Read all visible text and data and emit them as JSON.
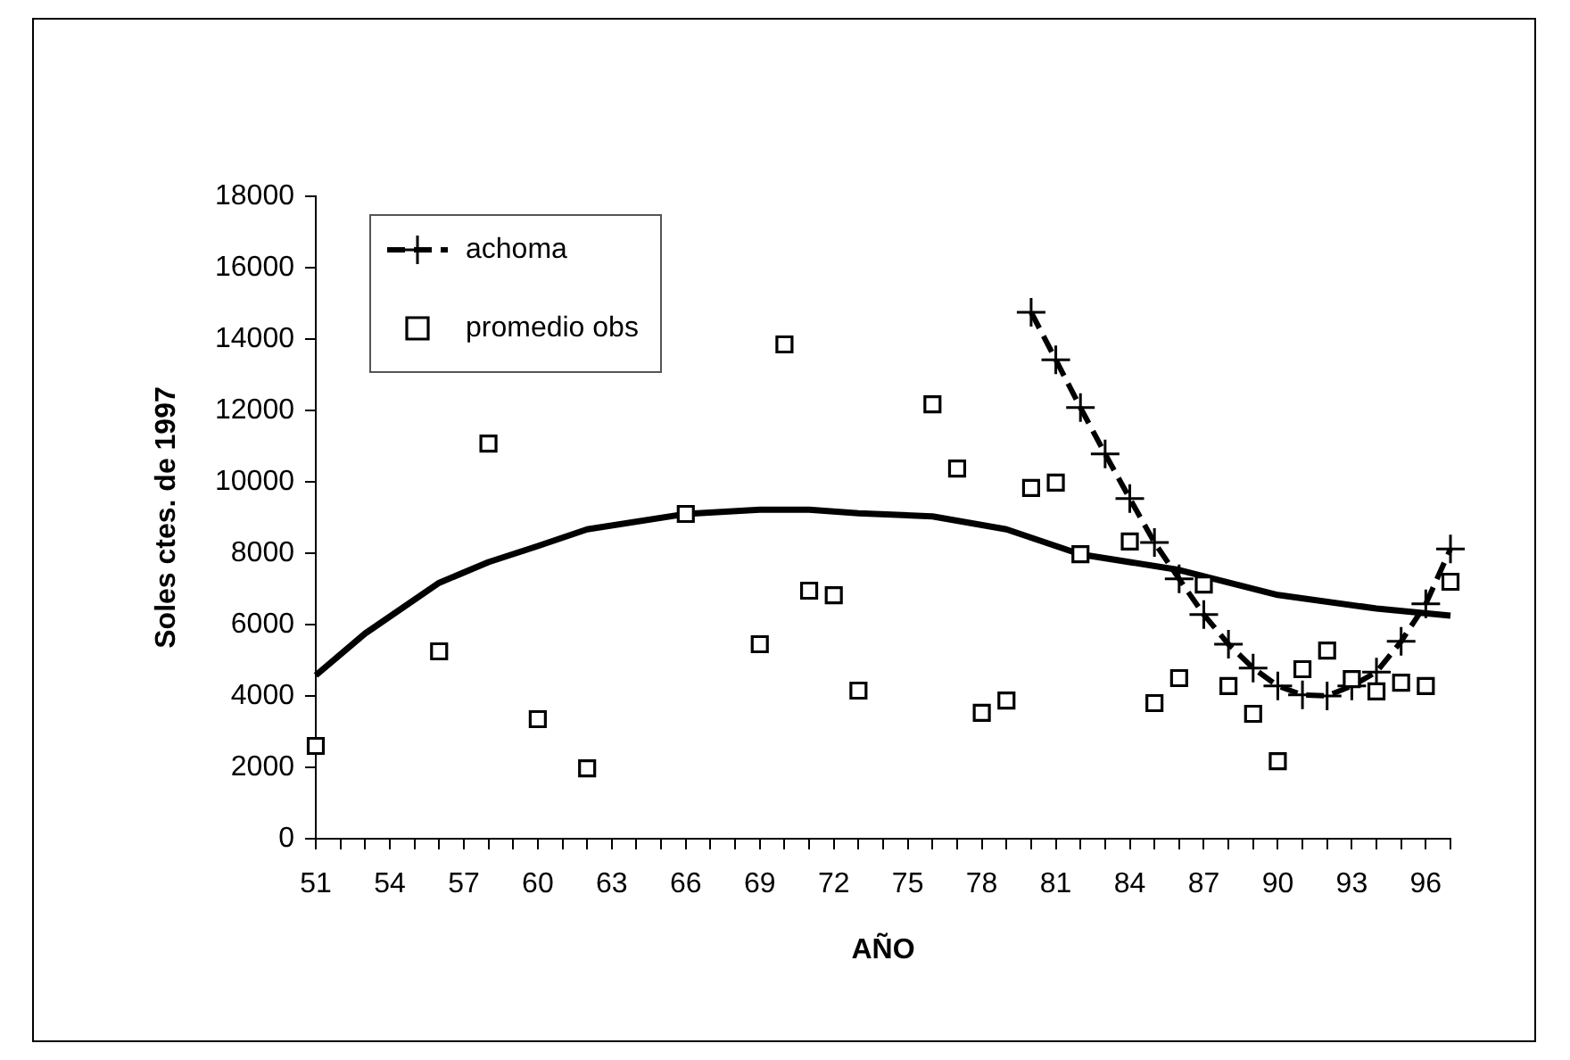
{
  "chart_data": {
    "type": "line",
    "xlabel": "AÑO",
    "ylabel": "Soles ctes. de 1997",
    "xlim": [
      51,
      97
    ],
    "xticks": [
      51,
      {
        "value": 52,
        "label": null
      },
      {
        "value": 53,
        "label": null
      },
      54,
      {
        "value": 55,
        "label": null
      },
      {
        "value": 56,
        "label": null
      },
      57,
      {
        "value": 58,
        "label": null
      },
      {
        "value": 59,
        "label": null
      },
      60,
      {
        "value": 61,
        "label": null
      },
      {
        "value": 62,
        "label": null
      },
      63,
      {
        "value": 64,
        "label": null
      },
      {
        "value": 65,
        "label": null
      },
      66,
      {
        "value": 67,
        "label": null
      },
      {
        "value": 68,
        "label": null
      },
      69,
      {
        "value": 70,
        "label": null
      },
      {
        "value": 71,
        "label": null
      },
      72,
      {
        "value": 73,
        "label": null
      },
      {
        "value": 74,
        "label": null
      },
      75,
      {
        "value": 76,
        "label": null
      },
      {
        "value": 77,
        "label": null
      },
      78,
      {
        "value": 79,
        "label": null
      },
      {
        "value": 80,
        "label": null
      },
      81,
      {
        "value": 82,
        "label": null
      },
      {
        "value": 83,
        "label": null
      },
      84,
      {
        "value": 85,
        "label": null
      },
      {
        "value": 86,
        "label": null
      },
      87,
      {
        "value": 88,
        "label": null
      },
      {
        "value": 89,
        "label": null
      },
      90,
      {
        "value": 91,
        "label": null
      },
      {
        "value": 92,
        "label": null
      },
      93,
      {
        "value": 94,
        "label": null
      },
      {
        "value": 95,
        "label": null
      },
      96,
      {
        "value": 97,
        "label": null
      }
    ],
    "ylim": [
      0,
      18000
    ],
    "yticks": [
      0,
      2000,
      4000,
      6000,
      8000,
      10000,
      12000,
      14000,
      16000,
      18000
    ],
    "grid": false,
    "legend": "top left",
    "series": [
      {
        "name": "achoma",
        "type": "line",
        "color": "#000000",
        "marker": "cross",
        "line_style": "dashed",
        "x": [
          80,
          81,
          82,
          83,
          84,
          85,
          86,
          87,
          88,
          89,
          90,
          91,
          92,
          93,
          94,
          95,
          96,
          97
        ],
        "values": [
          14750,
          13420,
          12080,
          10780,
          9530,
          8300,
          7280,
          6280,
          5450,
          4780,
          4280,
          4030,
          4000,
          4280,
          4670,
          5530,
          6580,
          8120
        ]
      },
      {
        "name": "promedio obs",
        "type": "scatter",
        "color": "#000000",
        "marker": "square",
        "x": [
          51,
          56,
          58,
          60,
          62,
          66,
          69,
          70,
          71,
          72,
          73,
          76,
          77,
          78,
          79,
          80,
          81,
          82,
          84,
          85,
          86,
          87,
          88,
          89,
          90,
          91,
          92,
          93,
          94,
          95,
          96,
          97
        ],
        "values": [
          2600,
          5250,
          11070,
          3350,
          1970,
          9100,
          5450,
          13850,
          6950,
          6820,
          4150,
          12170,
          10370,
          3530,
          3870,
          9830,
          9980,
          7970,
          8330,
          3800,
          4500,
          7120,
          4280,
          3500,
          2170,
          4750,
          5270,
          4470,
          4130,
          4370,
          4280,
          7200
        ]
      },
      {
        "type": "line",
        "color": "#000000",
        "marker": "none",
        "line_style": "solid",
        "x": [
          51,
          53,
          56,
          58,
          60,
          62,
          66,
          69,
          71,
          73,
          76,
          79,
          82,
          86,
          90,
          94,
          97
        ],
        "values": [
          4580,
          5750,
          7170,
          7750,
          8200,
          8670,
          9100,
          9220,
          9220,
          9120,
          9030,
          8670,
          7970,
          7530,
          6830,
          6450,
          6250
        ]
      }
    ]
  }
}
